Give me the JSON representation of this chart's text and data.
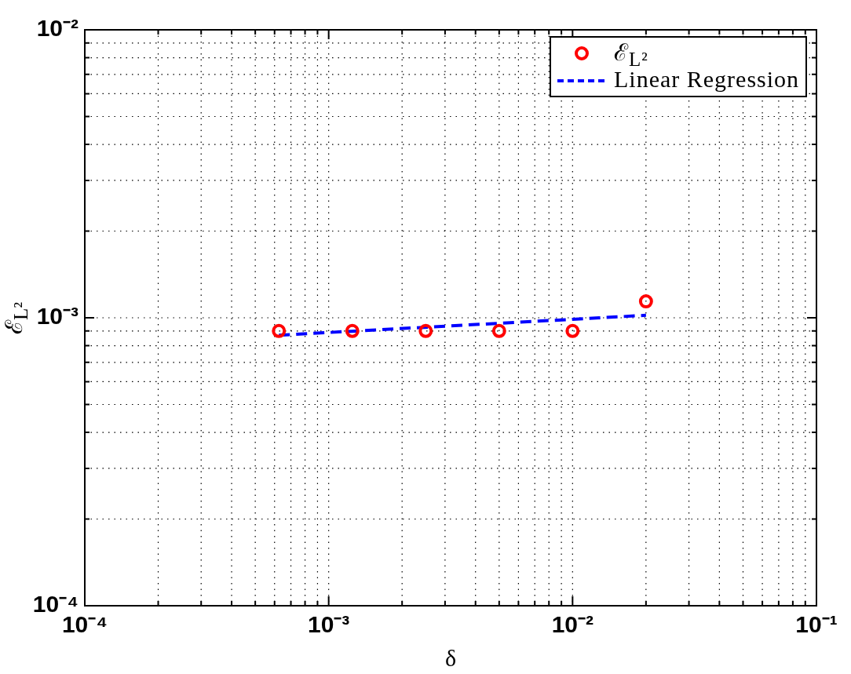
{
  "chart_data": {
    "type": "scatter",
    "xlabel": "δ",
    "ylabel": "ℰ$_{L²}$",
    "log": "xy",
    "grid": true,
    "legend": "top right",
    "marker": "circle",
    "xlim": [
      0.0001,
      0.1
    ],
    "ylim": [
      0.0001,
      0.01
    ],
    "xticks": [
      {
        "value": 0.0001,
        "label": "10⁻⁴"
      },
      {
        "value": 0.001,
        "label": "10⁻³"
      },
      {
        "value": 0.01,
        "label": "10⁻²"
      },
      {
        "value": 0.1,
        "label": "10⁻¹"
      }
    ],
    "yticks": [
      {
        "value": 0.0001,
        "label": "10⁻⁴"
      },
      {
        "value": 0.001,
        "label": "10⁻³"
      },
      {
        "value": 0.01,
        "label": "10⁻²"
      }
    ],
    "series": [
      {
        "name": "ℰ$_{L²}$",
        "color": "#ff0000",
        "x": [
          0.000625,
          0.00125,
          0.0025,
          0.005,
          0.01,
          0.02
        ],
        "values": [
          0.0009,
          0.0009,
          0.0009,
          0.0009,
          0.0009,
          0.00114
        ]
      },
      {
        "name": "Linear Regression",
        "type": "line",
        "color": "#0000ff",
        "line_style": "dashed",
        "marker": "none",
        "x": [
          0.000625,
          0.02
        ],
        "values": [
          0.00087,
          0.00102
        ]
      }
    ]
  }
}
